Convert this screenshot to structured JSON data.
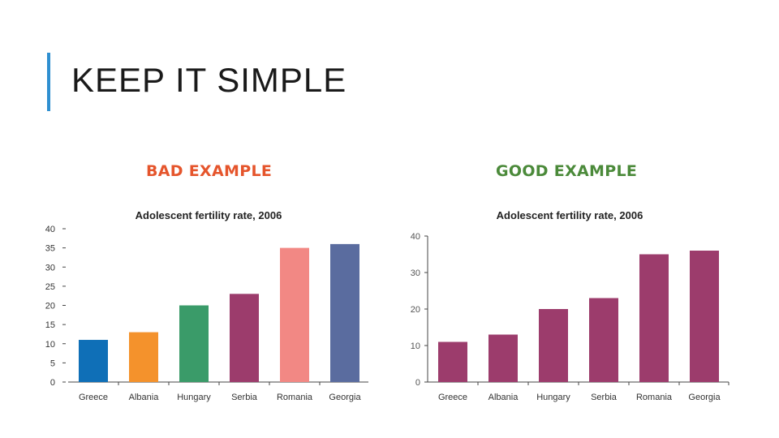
{
  "slide": {
    "title": "KEEP IT SIMPLE",
    "accent_color": "#2e8fd0"
  },
  "labels": {
    "bad": {
      "text": "BAD EXAMPLE",
      "color": "#e5552c"
    },
    "good": {
      "text": "GOOD EXAMPLE",
      "color": "#4b8a3a"
    }
  },
  "chart_data": [
    {
      "type": "bar",
      "title": "Adolescent fertility rate, 2006",
      "categories": [
        "Greece",
        "Albania",
        "Hungary",
        "Serbia",
        "Romania",
        "Georgia"
      ],
      "values": [
        11,
        13,
        20,
        23,
        35,
        36
      ],
      "colors": [
        "#0f6fb7",
        "#f4922c",
        "#3a9b69",
        "#9c3c6c",
        "#f28884",
        "#5a6c9f"
      ],
      "xlabel": "",
      "ylabel": "",
      "ylim": [
        0,
        40
      ],
      "yticks": [
        0,
        5,
        10,
        15,
        20,
        25,
        30,
        35,
        40
      ],
      "grid": false
    },
    {
      "type": "bar",
      "title": "Adolescent fertility rate, 2006",
      "categories": [
        "Greece",
        "Albania",
        "Hungary",
        "Serbia",
        "Romania",
        "Georgia"
      ],
      "values": [
        11,
        13,
        20,
        23,
        35,
        36
      ],
      "colors": [
        "#9c3c6c",
        "#9c3c6c",
        "#9c3c6c",
        "#9c3c6c",
        "#9c3c6c",
        "#9c3c6c"
      ],
      "xlabel": "",
      "ylabel": "",
      "ylim": [
        0,
        40
      ],
      "yticks": [
        0,
        10,
        20,
        30,
        40
      ],
      "grid": false
    }
  ]
}
